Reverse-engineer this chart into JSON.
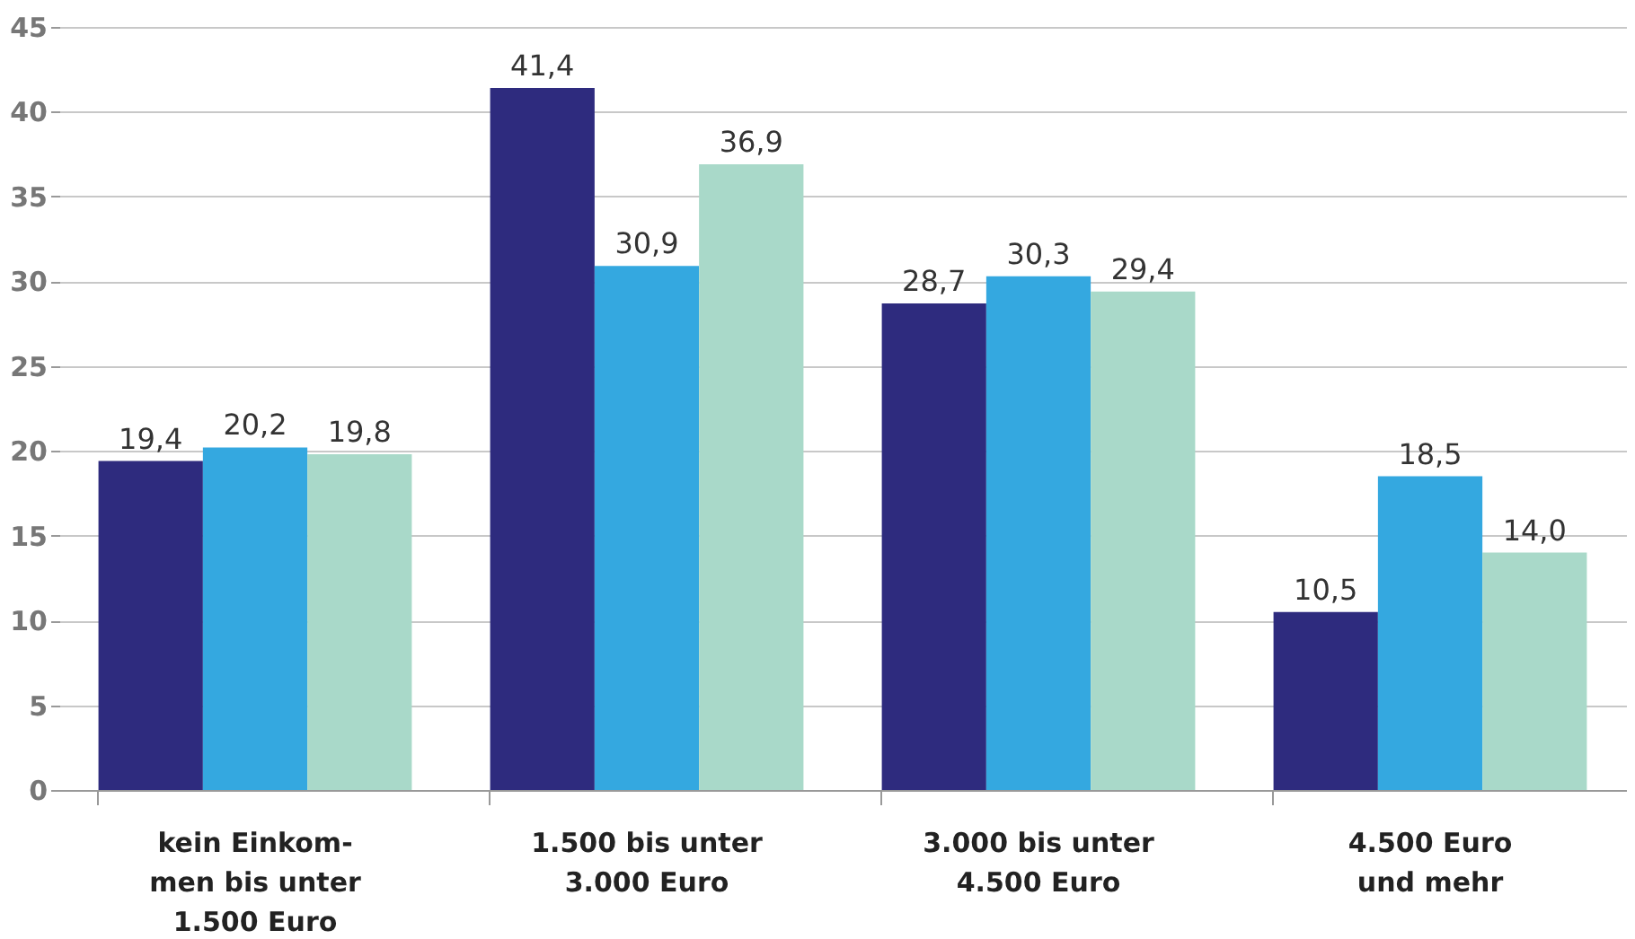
{
  "chart_data": {
    "type": "bar",
    "categories": [
      "kein Einkom-\nmen bis unter\n1.500 Euro",
      "1.500 bis unter\n3.000 Euro",
      "3.000 bis unter\n4.500 Euro",
      "4.500 Euro\nund mehr"
    ],
    "series": [
      {
        "color": "#2e2b7e",
        "values": [
          19.4,
          41.4,
          28.7,
          10.5
        ],
        "value_labels": [
          "19,4",
          "41,4",
          "28,7",
          "10,5"
        ]
      },
      {
        "color": "#34a8e0",
        "values": [
          20.2,
          30.9,
          30.3,
          18.5
        ],
        "value_labels": [
          "20,2",
          "30,9",
          "30,3",
          "18,5"
        ]
      },
      {
        "color": "#a9d9c9",
        "values": [
          19.8,
          36.9,
          29.4,
          14.0
        ],
        "value_labels": [
          "19,8",
          "36,9",
          "29,4",
          "14,0"
        ]
      }
    ],
    "ylim": [
      0,
      45
    ],
    "yticks": [
      0,
      5,
      10,
      15,
      20,
      25,
      30,
      35,
      40,
      45
    ],
    "grid": "y",
    "legend": false
  }
}
